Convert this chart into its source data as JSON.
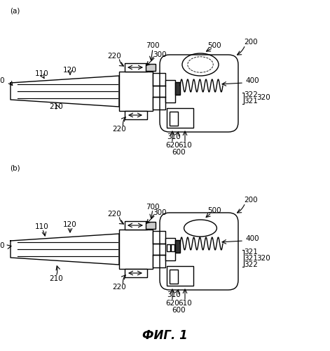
{
  "bg_color": "#ffffff",
  "line_color": "#000000",
  "lw": 1.0,
  "fs": 7.5,
  "fig_title": "ФИГ. 1",
  "label_a": "(a)",
  "label_b": "(b)"
}
